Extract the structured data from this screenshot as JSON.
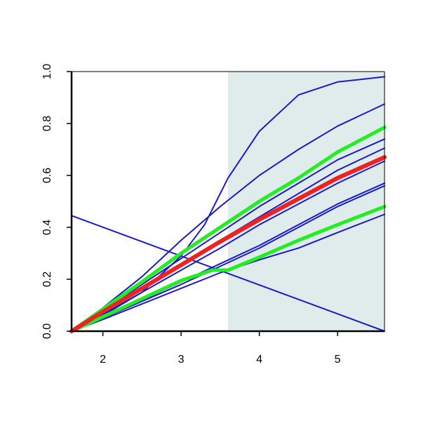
{
  "chart_data": {
    "type": "line",
    "title": "",
    "xlabel": "",
    "ylabel": "",
    "xlim": [
      1.6,
      5.6
    ],
    "ylim": [
      0.0,
      1.0
    ],
    "x_ticks": [
      {
        "value": 2,
        "label": "2"
      },
      {
        "value": 3,
        "label": "3"
      },
      {
        "value": 4,
        "label": "4"
      },
      {
        "value": 5,
        "label": "5"
      }
    ],
    "y_ticks": [
      {
        "value": 0.0,
        "label": "0.0"
      },
      {
        "value": 0.2,
        "label": "0.2"
      },
      {
        "value": 0.4,
        "label": "0.4"
      },
      {
        "value": 0.6,
        "label": "0.6"
      },
      {
        "value": 0.8,
        "label": "0.8"
      },
      {
        "value": 1.0,
        "label": "1.0"
      }
    ],
    "shaded_region": {
      "x_from": 3.6,
      "x_to": 5.6,
      "color": "#dfeceb"
    },
    "colors": {
      "blue": "#1a1acc",
      "green": "#22ee22",
      "red": "#ee2222",
      "axis": "#000000"
    },
    "series": [
      {
        "color": "blue",
        "width": 2,
        "points": [
          [
            1.6,
            0.0
          ],
          [
            2.0,
            0.06
          ],
          [
            2.5,
            0.15
          ],
          [
            3.0,
            0.29
          ],
          [
            3.3,
            0.41
          ],
          [
            3.6,
            0.59
          ],
          [
            4.0,
            0.77
          ],
          [
            4.5,
            0.91
          ],
          [
            5.0,
            0.96
          ],
          [
            5.6,
            0.98
          ]
        ]
      },
      {
        "color": "blue",
        "width": 2,
        "points": [
          [
            1.6,
            0.0
          ],
          [
            2.0,
            0.09
          ],
          [
            2.5,
            0.21
          ],
          [
            3.0,
            0.35
          ],
          [
            3.5,
            0.48
          ],
          [
            4.0,
            0.6
          ],
          [
            4.5,
            0.7
          ],
          [
            5.0,
            0.79
          ],
          [
            5.6,
            0.875
          ]
        ]
      },
      {
        "color": "blue",
        "width": 2,
        "points": [
          [
            1.6,
            0.0
          ],
          [
            2.0,
            0.08
          ],
          [
            2.5,
            0.18
          ],
          [
            3.0,
            0.28
          ],
          [
            3.5,
            0.38
          ],
          [
            4.0,
            0.48
          ],
          [
            4.5,
            0.57
          ],
          [
            5.0,
            0.66
          ],
          [
            5.6,
            0.74
          ]
        ]
      },
      {
        "color": "blue",
        "width": 2,
        "points": [
          [
            1.6,
            0.0
          ],
          [
            2.0,
            0.075
          ],
          [
            2.5,
            0.17
          ],
          [
            3.0,
            0.26
          ],
          [
            3.5,
            0.35
          ],
          [
            4.0,
            0.44
          ],
          [
            4.5,
            0.53
          ],
          [
            5.0,
            0.62
          ],
          [
            5.6,
            0.705
          ]
        ]
      },
      {
        "color": "blue",
        "width": 2,
        "points": [
          [
            1.6,
            0.0
          ],
          [
            2.0,
            0.065
          ],
          [
            2.5,
            0.15
          ],
          [
            3.0,
            0.235
          ],
          [
            3.5,
            0.32
          ],
          [
            4.0,
            0.41
          ],
          [
            4.5,
            0.49
          ],
          [
            5.0,
            0.57
          ],
          [
            5.6,
            0.655
          ]
        ]
      },
      {
        "color": "blue",
        "width": 2,
        "points": [
          [
            1.6,
            0.0
          ],
          [
            2.0,
            0.055
          ],
          [
            2.5,
            0.12
          ],
          [
            3.0,
            0.19
          ],
          [
            3.5,
            0.26
          ],
          [
            4.0,
            0.33
          ],
          [
            4.5,
            0.41
          ],
          [
            5.0,
            0.49
          ],
          [
            5.6,
            0.57
          ]
        ]
      },
      {
        "color": "blue",
        "width": 2,
        "points": [
          [
            1.6,
            0.0
          ],
          [
            2.0,
            0.05
          ],
          [
            2.5,
            0.115
          ],
          [
            3.0,
            0.18
          ],
          [
            3.5,
            0.25
          ],
          [
            4.0,
            0.32
          ],
          [
            4.5,
            0.4
          ],
          [
            5.0,
            0.48
          ],
          [
            5.6,
            0.56
          ]
        ]
      },
      {
        "color": "blue",
        "width": 2,
        "points": [
          [
            1.6,
            0.0
          ],
          [
            2.0,
            0.045
          ],
          [
            2.5,
            0.105
          ],
          [
            3.0,
            0.165
          ],
          [
            3.5,
            0.225
          ],
          [
            4.0,
            0.275
          ],
          [
            4.5,
            0.32
          ],
          [
            5.0,
            0.38
          ],
          [
            5.6,
            0.45
          ]
        ]
      },
      {
        "color": "blue",
        "width": 2,
        "points": [
          [
            1.6,
            0.445
          ],
          [
            5.6,
            0.0
          ]
        ]
      },
      {
        "color": "green",
        "width": 5,
        "points": [
          [
            1.6,
            0.0
          ],
          [
            2.0,
            0.085
          ],
          [
            2.5,
            0.19
          ],
          [
            3.0,
            0.3
          ],
          [
            3.5,
            0.4
          ],
          [
            4.0,
            0.5
          ],
          [
            4.5,
            0.59
          ],
          [
            5.0,
            0.69
          ],
          [
            5.6,
            0.785
          ]
        ]
      },
      {
        "color": "green",
        "width": 5,
        "points": [
          [
            1.6,
            0.0
          ],
          [
            2.0,
            0.055
          ],
          [
            2.5,
            0.125
          ],
          [
            3.0,
            0.195
          ],
          [
            3.4,
            0.235
          ],
          [
            3.6,
            0.235
          ],
          [
            4.0,
            0.285
          ],
          [
            4.5,
            0.35
          ],
          [
            5.0,
            0.41
          ],
          [
            5.6,
            0.48
          ]
        ]
      },
      {
        "color": "red",
        "width": 6,
        "points": [
          [
            1.6,
            0.0
          ],
          [
            2.0,
            0.075
          ],
          [
            2.5,
            0.165
          ],
          [
            3.0,
            0.255
          ],
          [
            3.5,
            0.345
          ],
          [
            4.0,
            0.43
          ],
          [
            4.5,
            0.51
          ],
          [
            5.0,
            0.59
          ],
          [
            5.6,
            0.67
          ]
        ]
      }
    ]
  }
}
